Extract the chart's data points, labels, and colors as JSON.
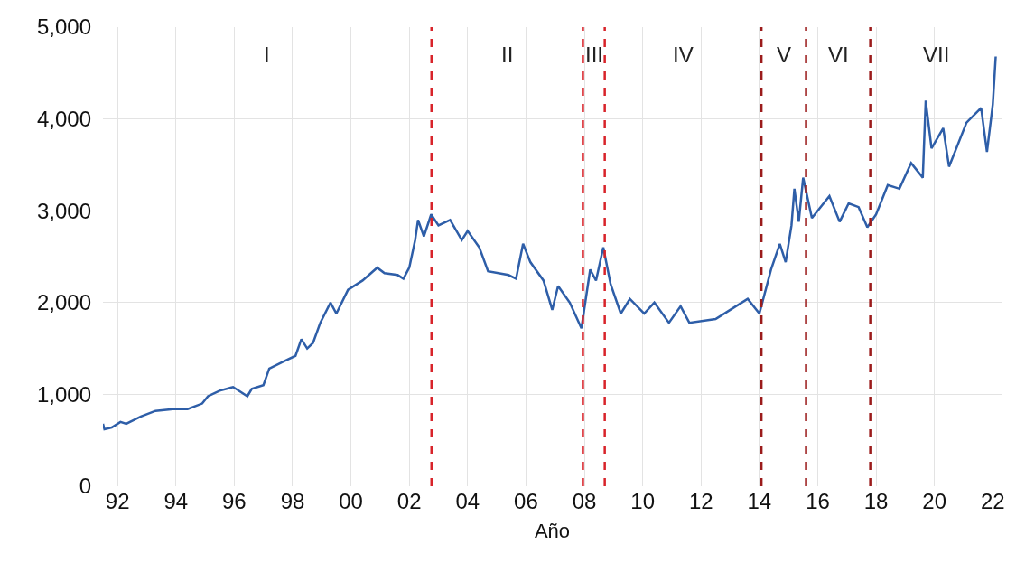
{
  "chart_data": {
    "type": "line",
    "xlabel": "Año",
    "x": [
      1991.5,
      1991.55,
      1991.8,
      1992.1,
      1992.3,
      1992.8,
      1993.3,
      1993.9,
      1994.4,
      1994.9,
      1995.1,
      1995.5,
      1995.96,
      1996.45,
      1996.6,
      1997.0,
      1997.2,
      1997.7,
      1998.1,
      1998.3,
      1998.5,
      1998.7,
      1998.95,
      1999.3,
      1999.5,
      1999.9,
      2000.4,
      2000.9,
      2001.15,
      2001.6,
      2001.8,
      2002.0,
      2002.2,
      2002.3,
      2002.5,
      2002.75,
      2003.0,
      2003.4,
      2003.8,
      2004.0,
      2004.4,
      2004.7,
      2005.4,
      2005.66,
      2005.9,
      2006.15,
      2006.6,
      2006.9,
      2007.1,
      2007.5,
      2007.9,
      2008.2,
      2008.4,
      2008.65,
      2008.9,
      2009.25,
      2009.56,
      2010.05,
      2010.4,
      2010.9,
      2011.3,
      2011.6,
      2012.5,
      2013.0,
      2013.6,
      2014.0,
      2014.4,
      2014.7,
      2014.9,
      2015.1,
      2015.2,
      2015.35,
      2015.5,
      2015.8,
      2016.4,
      2016.75,
      2017.06,
      2017.4,
      2017.7,
      2018.0,
      2018.4,
      2018.8,
      2019.2,
      2019.6,
      2019.7,
      2019.9,
      2020.3,
      2020.5,
      2021.1,
      2021.6,
      2021.8,
      2022.0,
      2022.1
    ],
    "series": [
      {
        "color": "#2e5ea8",
        "values": [
          680,
          620,
          640,
          700,
          680,
          760,
          820,
          840,
          840,
          900,
          980,
          1040,
          1080,
          980,
          1060,
          1100,
          1280,
          1360,
          1420,
          1600,
          1500,
          1560,
          1780,
          2000,
          1880,
          2140,
          2240,
          2380,
          2320,
          2300,
          2260,
          2380,
          2680,
          2900,
          2720,
          2960,
          2840,
          2900,
          2680,
          2780,
          2600,
          2340,
          2300,
          2260,
          2640,
          2440,
          2240,
          1920,
          2180,
          2000,
          1720,
          2360,
          2240,
          2600,
          2200,
          1880,
          2040,
          1880,
          2000,
          1780,
          1960,
          1780,
          1820,
          1920,
          2040,
          1880,
          2360,
          2640,
          2440,
          2840,
          3240,
          2880,
          3360,
          2920,
          3160,
          2880,
          3080,
          3040,
          2820,
          2960,
          3280,
          3240,
          3520,
          3360,
          4200,
          3680,
          3900,
          3480,
          3960,
          4120,
          3640,
          4160,
          4680
        ]
      }
    ],
    "xlim": [
      1991.5,
      2022.3
    ],
    "xticks": [
      {
        "value": 1992,
        "label": "92"
      },
      {
        "value": 1994,
        "label": "94"
      },
      {
        "value": 1996,
        "label": "96"
      },
      {
        "value": 1998,
        "label": "98"
      },
      {
        "value": 2000,
        "label": "00"
      },
      {
        "value": 2002,
        "label": "02"
      },
      {
        "value": 2004,
        "label": "04"
      },
      {
        "value": 2006,
        "label": "06"
      },
      {
        "value": 2008,
        "label": "08"
      },
      {
        "value": 2010,
        "label": "10"
      },
      {
        "value": 2012,
        "label": "12"
      },
      {
        "value": 2014,
        "label": "14"
      },
      {
        "value": 2016,
        "label": "16"
      },
      {
        "value": 2018,
        "label": "18"
      },
      {
        "value": 2020,
        "label": "20"
      },
      {
        "value": 2022,
        "label": "22"
      }
    ],
    "ylim": [
      0,
      5000
    ],
    "yticks": [
      0,
      {
        "value": 1000,
        "label": "1,000"
      },
      {
        "value": 2000,
        "label": "2,000"
      },
      {
        "value": 3000,
        "label": "3,000"
      },
      {
        "value": 4000,
        "label": "4,000"
      },
      {
        "value": 5000,
        "label": "5,000"
      }
    ],
    "grid": true,
    "marker": "none",
    "line_style": "solid",
    "ref_lines": [
      {
        "axis": "x",
        "value": 2002.76,
        "color": "#d8232a",
        "line_style": "dashed"
      },
      {
        "axis": "x",
        "value": 2007.95,
        "color": "#d8232a",
        "line_style": "dashed"
      },
      {
        "axis": "x",
        "value": 2008.7,
        "color": "#d8232a",
        "line_style": "dashed"
      },
      {
        "axis": "x",
        "value": 2014.07,
        "color": "#9b1b1b",
        "line_style": "dashed"
      },
      {
        "axis": "x",
        "value": 2015.6,
        "color": "#9b1b1b",
        "line_style": "dashed"
      },
      {
        "axis": "x",
        "value": 2017.8,
        "color": "#9b1b1b",
        "line_style": "dashed"
      }
    ],
    "annotations": [
      "I",
      "II",
      "III",
      "IV",
      "V",
      "VI",
      "VII"
    ]
  }
}
